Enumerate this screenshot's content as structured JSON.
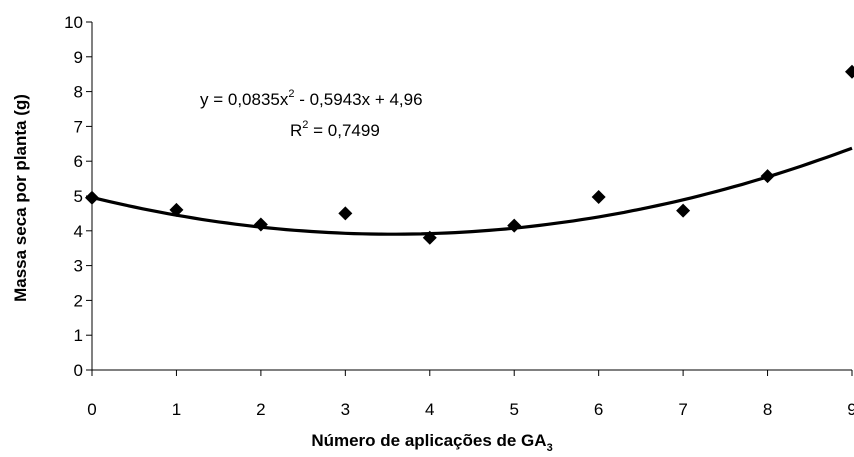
{
  "chart_data": {
    "type": "scatter",
    "xlabel": "Número de aplicações de GA",
    "xlabel_sub": "3",
    "ylabel": "Massa seca por planta (g)",
    "xlim": [
      0,
      9
    ],
    "ylim": [
      0,
      10
    ],
    "x_ticks": [
      "0",
      "1",
      "2",
      "3",
      "4",
      "5",
      "6",
      "7",
      "8",
      "9"
    ],
    "y_ticks": [
      "0",
      "1",
      "2",
      "3",
      "4",
      "5",
      "6",
      "7",
      "8",
      "9",
      "10"
    ],
    "grid": false,
    "legend": "none",
    "points": [
      {
        "x": 0,
        "y": 4.95
      },
      {
        "x": 1,
        "y": 4.6
      },
      {
        "x": 2,
        "y": 4.18
      },
      {
        "x": 3,
        "y": 4.5
      },
      {
        "x": 4,
        "y": 3.8
      },
      {
        "x": 5,
        "y": 4.15
      },
      {
        "x": 6,
        "y": 4.97
      },
      {
        "x": 7,
        "y": 4.58
      },
      {
        "x": 8,
        "y": 5.57
      },
      {
        "x": 9,
        "y": 8.57
      }
    ],
    "trendline": {
      "type": "polynomial",
      "coefficients": {
        "a": 0.0835,
        "b": -0.5943,
        "c": 4.96
      },
      "equation_prefix": "y = 0,0835x",
      "equation_suffix": " - 0,5943x + 4,96",
      "r2_prefix": "R",
      "r2_suffix": " = 0,7499",
      "exponent": "2"
    },
    "marker": "diamond",
    "marker_color": "#000000",
    "line_color": "#000000"
  }
}
